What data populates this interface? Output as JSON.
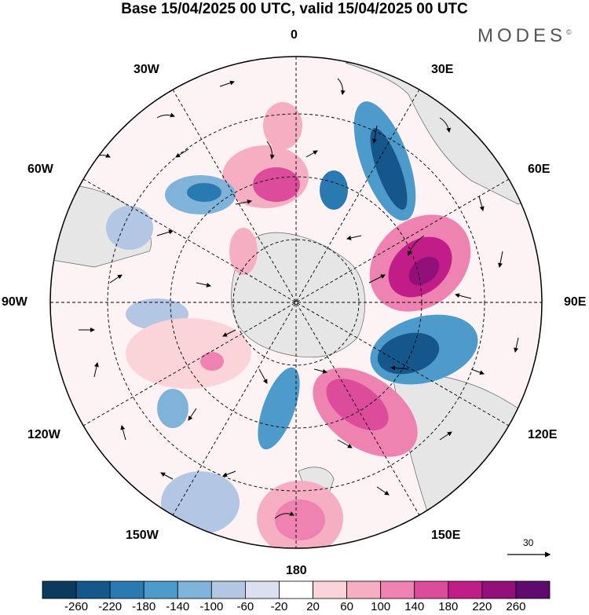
{
  "title": "Base 15/04/2025 00 UTC, valid 15/04/2025 00 UTC",
  "logo": "MODES",
  "logo_mark": "©",
  "longitude_labels": {
    "top": "0",
    "top_right": "30E",
    "upper_right": "60E",
    "right": "90E",
    "lower_right": "120E",
    "bottom_right": "150E",
    "bottom": "180",
    "bottom_left": "150W",
    "lower_left": "120W",
    "left": "90W",
    "upper_left": "60W",
    "top_left": "30W"
  },
  "vector_scale": {
    "value": "30"
  },
  "colorbar": {
    "ticks": [
      "-260",
      "-220",
      "-180",
      "-140",
      "-100",
      "-60",
      "-20",
      "20",
      "60",
      "100",
      "140",
      "180",
      "220",
      "260"
    ],
    "colors": [
      "#0c3a5e",
      "#15578a",
      "#2a7ab2",
      "#4c9bcb",
      "#7fb3d9",
      "#b3c6e4",
      "#dcdff0",
      "#ffffff",
      "#fad4d9",
      "#f6aec3",
      "#ee82b1",
      "#dd4c9b",
      "#c01d88",
      "#93107b",
      "#5e0a6e"
    ]
  },
  "colors": {
    "land": "#e8e8e8",
    "grid": "#000000"
  }
}
